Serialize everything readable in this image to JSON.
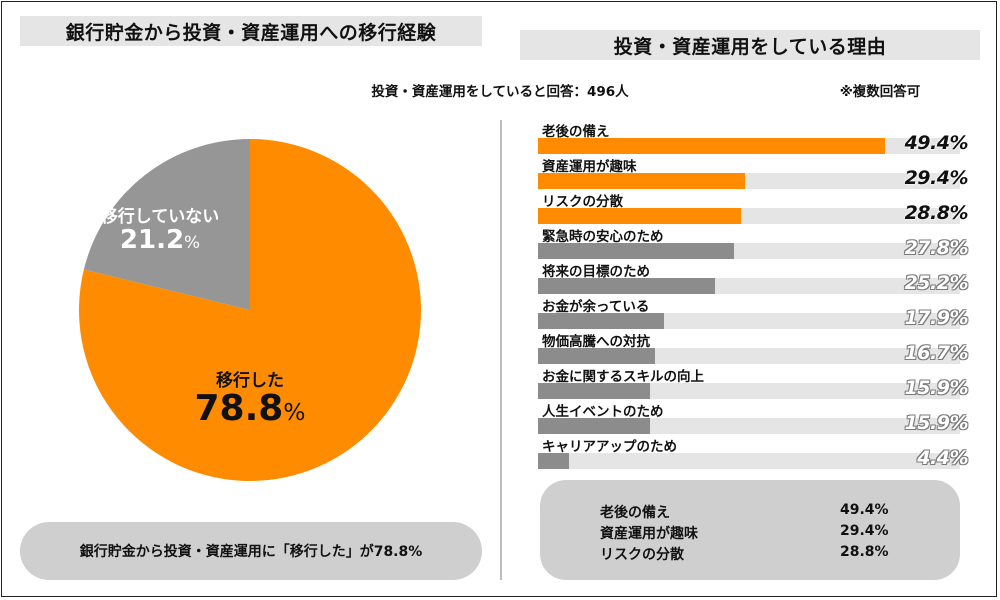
{
  "left": {
    "title": "銀行貯金から投資・資産運用への移行経験",
    "summary": "銀行貯金から投資・資産運用に「移行した」が78.8%"
  },
  "right": {
    "title": "投資・資産運用をしている理由",
    "respondents_note": "投資・資産運用をしていると回答：496人",
    "multiple_note": "※複数回答可",
    "summary": [
      {
        "label": "老後の備え",
        "value": "49.4%"
      },
      {
        "label": "資産運用が趣味",
        "value": "29.4%"
      },
      {
        "label": "リスクの分散",
        "value": "28.8%"
      }
    ]
  },
  "colors": {
    "accent": "#FF8C00",
    "gray_bar": "#8C8C8C",
    "pie_gray": "#969696",
    "track": "#E5E5E5",
    "pill": "#CFCFCF"
  },
  "chart_data": [
    {
      "type": "pie",
      "title": "銀行貯金から投資・資産運用への移行経験",
      "slices": [
        {
          "label": "移行した",
          "value": 78.8,
          "display": "78.8",
          "unit": "%"
        },
        {
          "label": "移行していない",
          "value": 21.2,
          "display": "21.2",
          "unit": "%"
        }
      ]
    },
    {
      "type": "bar",
      "orientation": "horizontal",
      "title": "投資・資産運用をしている理由",
      "xlim": [
        0,
        60
      ],
      "highlight_top_n": 3,
      "categories": [
        "老後の備え",
        "資産運用が趣味",
        "リスクの分散",
        "緊急時の安心のため",
        "将来の目標のため",
        "お金が余っている",
        "物価高騰への対抗",
        "お金に関するスキルの向上",
        "人生イベントのため",
        "キャリアアップのため"
      ],
      "values": [
        49.4,
        29.4,
        28.8,
        27.8,
        25.2,
        17.9,
        16.7,
        15.9,
        15.9,
        4.4
      ],
      "value_labels": [
        "49.4%",
        "29.4%",
        "28.8%",
        "27.8%",
        "25.2%",
        "17.9%",
        "16.7%",
        "15.9%",
        "15.9%",
        "4.4%"
      ]
    }
  ]
}
